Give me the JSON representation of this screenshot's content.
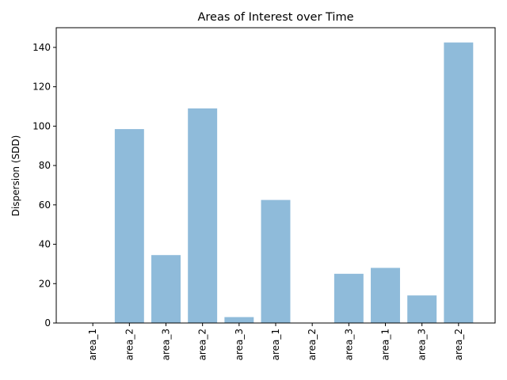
{
  "chart_data": {
    "type": "bar",
    "title": "Areas of Interest over Time",
    "xlabel": "",
    "ylabel": "Dispersion (SDD)",
    "categories": [
      "area_1",
      "area_2",
      "area_3",
      "area_2",
      "area_3",
      "area_1",
      "area_2",
      "area_3",
      "area_1",
      "area_3",
      "area_2"
    ],
    "values": [
      0,
      98.5,
      34.5,
      109,
      3,
      62.5,
      0,
      25,
      28,
      14,
      142.5
    ],
    "ylim": [
      0,
      150
    ],
    "yticks": [
      0,
      20,
      40,
      60,
      80,
      100,
      120,
      140
    ],
    "grid": false,
    "legend": "none",
    "bar_color": "#8fbbda"
  }
}
